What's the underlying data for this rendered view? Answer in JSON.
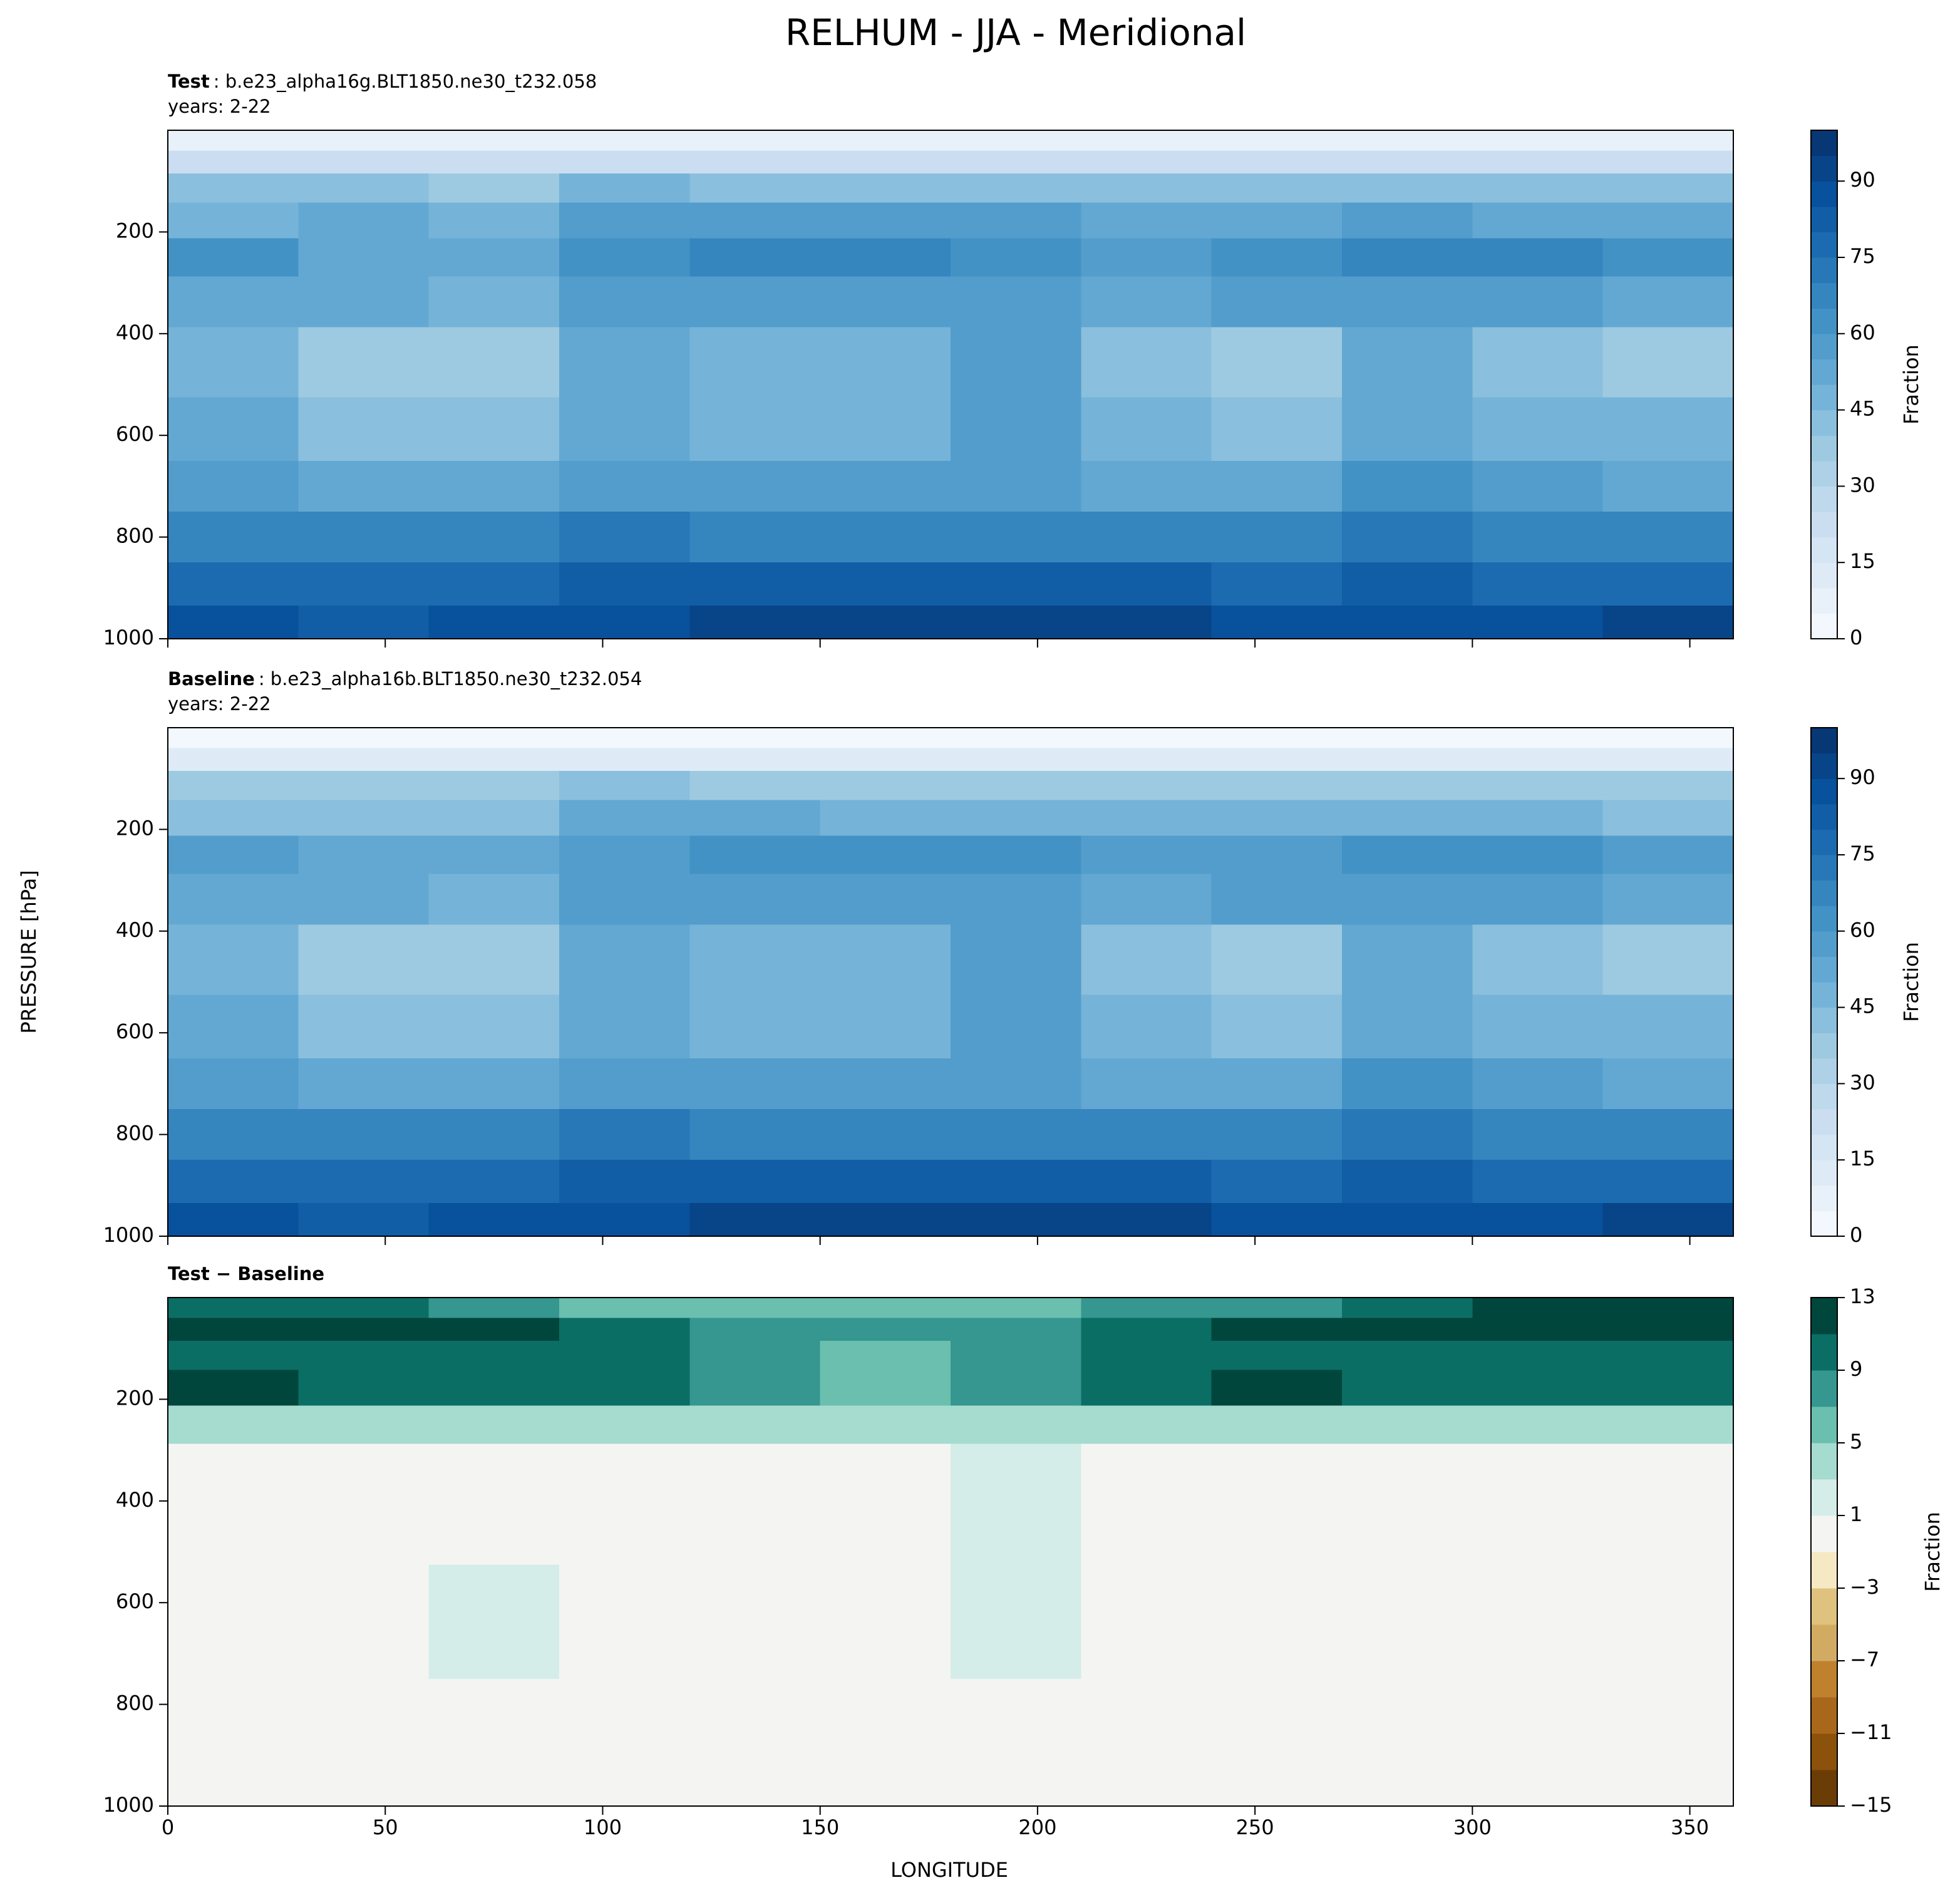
{
  "title": "RELHUM - JJA - Meridional",
  "xlabel": "LONGITUDE",
  "ylabel": "PRESSURE [hPa]",
  "chart_data": [
    {
      "type": "contour",
      "title_bold": "Test",
      "title_rest": ": b.e23_alpha16g.BLT1850.ne30_t232.058",
      "subtitle": "years: 2-22",
      "xlim": [
        0,
        360
      ],
      "xticks": [
        0,
        50,
        100,
        150,
        200,
        250,
        300,
        350
      ],
      "ylim": [
        0,
        1000
      ],
      "invert_y": true,
      "yticks": [
        200,
        400,
        600,
        800,
        1000
      ],
      "x": [
        15,
        45,
        75,
        105,
        135,
        165,
        195,
        225,
        255,
        285,
        315,
        345
      ],
      "y": [
        20,
        60,
        110,
        175,
        250,
        325,
        450,
        600,
        700,
        800,
        900,
        970
      ],
      "z": [
        [
          5,
          5,
          5,
          5,
          5,
          5,
          5,
          5,
          5,
          5,
          5,
          5
        ],
        [
          20,
          20,
          20,
          20,
          20,
          20,
          20,
          20,
          20,
          20,
          20,
          20
        ],
        [
          40,
          40,
          35,
          45,
          40,
          40,
          40,
          40,
          40,
          40,
          40,
          40
        ],
        [
          45,
          50,
          45,
          55,
          55,
          55,
          55,
          50,
          50,
          55,
          50,
          50
        ],
        [
          60,
          50,
          50,
          60,
          65,
          65,
          60,
          55,
          60,
          65,
          65,
          60
        ],
        [
          50,
          50,
          45,
          55,
          55,
          55,
          55,
          50,
          55,
          55,
          55,
          50
        ],
        [
          45,
          35,
          35,
          50,
          45,
          45,
          55,
          40,
          35,
          50,
          40,
          35
        ],
        [
          50,
          40,
          40,
          50,
          45,
          45,
          55,
          45,
          40,
          50,
          45,
          45
        ],
        [
          55,
          50,
          50,
          55,
          55,
          55,
          55,
          50,
          50,
          60,
          55,
          50
        ],
        [
          65,
          65,
          65,
          70,
          65,
          65,
          65,
          65,
          65,
          70,
          65,
          65
        ],
        [
          75,
          75,
          75,
          80,
          80,
          80,
          80,
          80,
          75,
          80,
          75,
          75
        ],
        [
          85,
          80,
          85,
          85,
          90,
          90,
          90,
          90,
          85,
          85,
          85,
          90
        ]
      ],
      "levels": [
        0,
        5,
        10,
        15,
        20,
        25,
        30,
        35,
        40,
        45,
        50,
        55,
        60,
        65,
        70,
        75,
        80,
        85,
        90,
        95,
        100
      ],
      "colors": [
        "#f7fbff",
        "#deebf7",
        "#c6dbef",
        "#9ecae1",
        "#6baed6",
        "#4292c6",
        "#2171b5",
        "#08519c",
        "#08306b"
      ],
      "cticks": [
        0,
        15,
        30,
        45,
        60,
        75,
        90
      ],
      "clabel": "Fraction"
    },
    {
      "type": "contour",
      "title_bold": "Baseline",
      "title_rest": ": b.e23_alpha16b.BLT1850.ne30_t232.054",
      "subtitle": "years: 2-22",
      "xlim": [
        0,
        360
      ],
      "xticks": [
        0,
        50,
        100,
        150,
        200,
        250,
        300,
        350
      ],
      "ylim": [
        0,
        1000
      ],
      "invert_y": true,
      "yticks": [
        200,
        400,
        600,
        800,
        1000
      ],
      "x": [
        15,
        45,
        75,
        105,
        135,
        165,
        195,
        225,
        255,
        285,
        315,
        345
      ],
      "y": [
        20,
        60,
        110,
        175,
        250,
        325,
        450,
        600,
        700,
        800,
        900,
        970
      ],
      "z": [
        [
          3,
          3,
          3,
          3,
          3,
          3,
          3,
          3,
          3,
          3,
          3,
          3
        ],
        [
          10,
          10,
          10,
          10,
          10,
          10,
          10,
          10,
          10,
          10,
          10,
          10
        ],
        [
          35,
          35,
          35,
          40,
          35,
          35,
          35,
          35,
          35,
          35,
          35,
          35
        ],
        [
          40,
          40,
          40,
          50,
          50,
          45,
          45,
          45,
          45,
          45,
          45,
          40
        ],
        [
          55,
          50,
          50,
          55,
          60,
          60,
          60,
          55,
          55,
          60,
          60,
          55
        ],
        [
          50,
          50,
          45,
          55,
          55,
          55,
          55,
          50,
          55,
          55,
          55,
          50
        ],
        [
          45,
          35,
          35,
          50,
          45,
          45,
          55,
          40,
          35,
          50,
          40,
          35
        ],
        [
          50,
          40,
          40,
          50,
          45,
          45,
          55,
          45,
          40,
          50,
          45,
          45
        ],
        [
          55,
          50,
          50,
          55,
          55,
          55,
          55,
          50,
          50,
          60,
          55,
          50
        ],
        [
          65,
          65,
          65,
          70,
          65,
          65,
          65,
          65,
          65,
          70,
          65,
          65
        ],
        [
          75,
          75,
          75,
          80,
          80,
          80,
          80,
          80,
          75,
          80,
          75,
          75
        ],
        [
          85,
          80,
          85,
          85,
          90,
          90,
          90,
          90,
          85,
          85,
          85,
          90
        ]
      ],
      "levels": [
        0,
        5,
        10,
        15,
        20,
        25,
        30,
        35,
        40,
        45,
        50,
        55,
        60,
        65,
        70,
        75,
        80,
        85,
        90,
        95,
        100
      ],
      "colors": [
        "#f7fbff",
        "#deebf7",
        "#c6dbef",
        "#9ecae1",
        "#6baed6",
        "#4292c6",
        "#2171b5",
        "#08519c",
        "#08306b"
      ],
      "cticks": [
        0,
        15,
        30,
        45,
        60,
        75,
        90
      ],
      "clabel": "Fraction"
    },
    {
      "type": "contour",
      "title_bold": "Test − Baseline",
      "xlim": [
        0,
        360
      ],
      "xticks": [
        0,
        50,
        100,
        150,
        200,
        250,
        300,
        350
      ],
      "ylim": [
        0,
        1000
      ],
      "invert_y": true,
      "yticks": [
        200,
        400,
        600,
        800,
        1000
      ],
      "x": [
        15,
        45,
        75,
        105,
        135,
        165,
        195,
        225,
        255,
        285,
        315,
        345
      ],
      "y": [
        20,
        60,
        110,
        175,
        250,
        325,
        450,
        600,
        700,
        800,
        900,
        970
      ],
      "z": [
        [
          9,
          9,
          7,
          5,
          5,
          5,
          5,
          7,
          7,
          9,
          11,
          11
        ],
        [
          11,
          11,
          11,
          9,
          7,
          7,
          7,
          9,
          11,
          11,
          11,
          11
        ],
        [
          9,
          9,
          9,
          9,
          7,
          5,
          7,
          9,
          9,
          9,
          9,
          9
        ],
        [
          11,
          9,
          9,
          9,
          7,
          5,
          7,
          9,
          11,
          9,
          9,
          9
        ],
        [
          3,
          3,
          3,
          3,
          3,
          3,
          3,
          3,
          3,
          3,
          3,
          3
        ],
        [
          0.5,
          0.5,
          0.5,
          0.5,
          0.5,
          0.5,
          1.5,
          0.5,
          0.5,
          0.5,
          0.5,
          0.5
        ],
        [
          0.5,
          0.5,
          0.5,
          0.5,
          0.5,
          0.5,
          1.5,
          0.5,
          0.5,
          0.5,
          0.5,
          0.5
        ],
        [
          0.5,
          0.5,
          1.5,
          0.5,
          0.5,
          0.5,
          1.5,
          0.5,
          0.5,
          0.5,
          0.5,
          0.5
        ],
        [
          0.5,
          0.5,
          1.5,
          0.5,
          0.5,
          0.5,
          1.5,
          0.5,
          0.5,
          0.5,
          0.5,
          0.5
        ],
        [
          0.5,
          0.5,
          0.5,
          0.5,
          0.5,
          0.5,
          0.5,
          0.5,
          0.5,
          0.5,
          0.5,
          0.5
        ],
        [
          0.5,
          0.5,
          0.5,
          0.5,
          0.5,
          0.5,
          0.5,
          0.5,
          0.5,
          0.5,
          0.5,
          0.5
        ],
        [
          0.5,
          0.5,
          0.5,
          0.5,
          0.5,
          0.5,
          0.5,
          0.5,
          0.5,
          0.5,
          0.5,
          0.5
        ]
      ],
      "levels": [
        -15,
        -13,
        -11,
        -9,
        -7,
        -5,
        -3,
        -1,
        1,
        3,
        5,
        7,
        9,
        11,
        13
      ],
      "colors": [
        "#6b3d06",
        "#8c510a",
        "#a9671b",
        "#bf812d",
        "#d2ab63",
        "#dfc27d",
        "#f6e8c3",
        "#f4f5f3",
        "#d4ede8",
        "#a6dbd0",
        "#6bbfae",
        "#35978f",
        "#0b6e65",
        "#01463c"
      ],
      "cticks": [
        {
          "value": -15,
          "label": "−15"
        },
        {
          "value": -11,
          "label": "−11"
        },
        {
          "value": -7,
          "label": "−7"
        },
        {
          "value": -3,
          "label": "−3"
        },
        1,
        5,
        9,
        13
      ],
      "clabel": "Fraction"
    }
  ]
}
